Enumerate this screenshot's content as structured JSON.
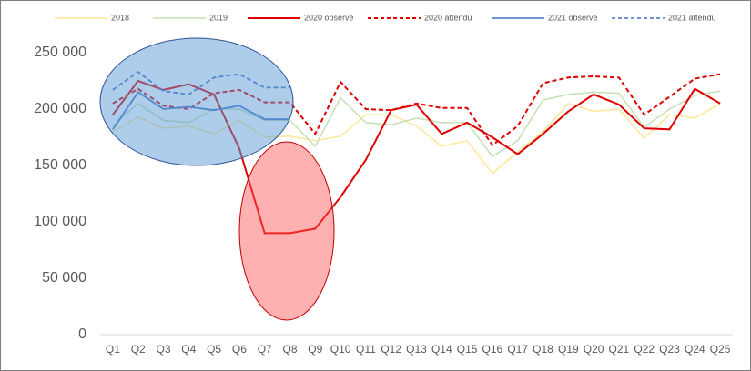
{
  "chart_data": {
    "type": "line",
    "categories": [
      "Q1",
      "Q2",
      "Q3",
      "Q4",
      "Q5",
      "Q6",
      "Q7",
      "Q8",
      "Q9",
      "Q10",
      "Q11",
      "Q12",
      "Q13",
      "Q14",
      "Q15",
      "Q16",
      "Q17",
      "Q18",
      "Q19",
      "Q20",
      "Q21",
      "Q22",
      "Q23",
      "Q24",
      "Q25"
    ],
    "ylim": [
      0,
      250000
    ],
    "yticks": [
      0,
      {
        "value": 50000,
        "label": "50 000"
      },
      {
        "value": 100000,
        "label": "100 000"
      },
      {
        "value": 150000,
        "label": "150 000"
      },
      {
        "value": 200000,
        "label": "200 000"
      },
      {
        "value": 250000,
        "label": "250 000"
      }
    ],
    "grid": false,
    "legend": "top",
    "series": [
      {
        "name": "2018",
        "color": "#ffe699",
        "dashed": false,
        "values": [
          180000,
          193000,
          183000,
          185000,
          178000,
          190000,
          175000,
          176000,
          172000,
          176000,
          195000,
          195000,
          185000,
          167000,
          172000,
          143000,
          162000,
          180000,
          205000,
          198000,
          200000,
          174000,
          195000,
          192000,
          205000
        ]
      },
      {
        "name": "2019",
        "color": "#c5e0b4",
        "dashed": false,
        "values": [
          185000,
          205000,
          190000,
          188000,
          200000,
          200000,
          190000,
          190000,
          167000,
          210000,
          188000,
          186000,
          192000,
          188000,
          188000,
          158000,
          172000,
          208000,
          213000,
          215000,
          214000,
          184000,
          200000,
          212000,
          216000
        ]
      },
      {
        "name": "2020 observé",
        "color": "#e00000",
        "dashed": false,
        "values": [
          195000,
          225000,
          217000,
          222000,
          213000,
          165000,
          90000,
          90000,
          94000,
          122000,
          155000,
          199000,
          204000,
          178000,
          188000,
          175000,
          160000,
          178000,
          198000,
          213000,
          204000,
          183000,
          182000,
          218000,
          205000
        ]
      },
      {
        "name": "2020 attendu",
        "color": "#e00000",
        "dashed": true,
        "values": [
          205000,
          218000,
          203000,
          200000,
          214000,
          217000,
          206000,
          206000,
          178000,
          224000,
          200000,
          199000,
          205000,
          201000,
          201000,
          168000,
          185000,
          223000,
          228000,
          229000,
          228000,
          195000,
          211000,
          227000,
          231000
        ]
      },
      {
        "name": "2021 observé",
        "color": "#4472c4",
        "dashed": false,
        "values": [
          182000,
          215000,
          200000,
          202000,
          199000,
          203000,
          191000,
          191000,
          null,
          null,
          null,
          null,
          null,
          null,
          null,
          null,
          null,
          null,
          null,
          null,
          null,
          null,
          null,
          null,
          null
        ]
      },
      {
        "name": "2021 attendu",
        "color": "#4472c4",
        "dashed": true,
        "values": [
          217000,
          233000,
          216000,
          213000,
          228000,
          231000,
          219000,
          219000,
          null,
          null,
          null,
          null,
          null,
          null,
          null,
          null,
          null,
          null,
          null,
          null,
          null,
          null,
          null,
          null,
          null
        ]
      }
    ]
  }
}
